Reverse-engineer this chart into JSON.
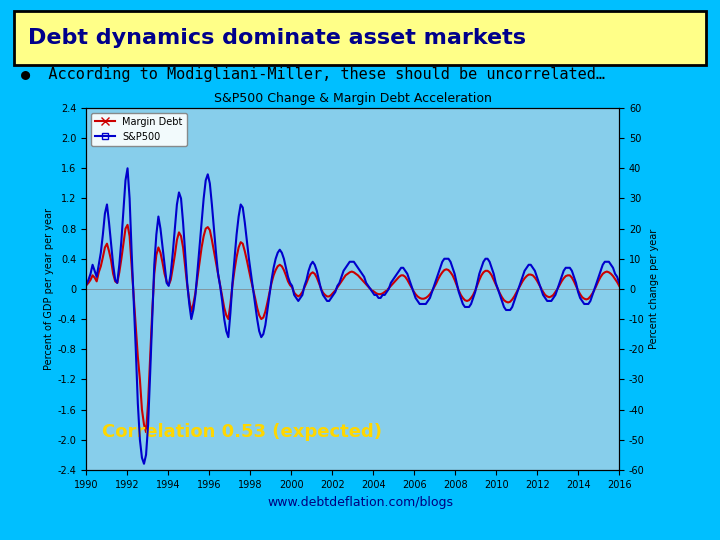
{
  "background_color": "#00BFFF",
  "title_text": "Debt dynamics dominate asset markets",
  "title_bg": "#FFFF88",
  "title_border": "#000000",
  "title_color": "#00008B",
  "subtitle_text": "●  According to Modigliani-Miller, these should be uncorrelated…",
  "subtitle_color": "#000000",
  "chart_title": "S&P500 Change & Margin Debt Acceleration",
  "chart_bg": "#87CEEB",
  "left_ylabel": "Percent of GDP per year per year",
  "right_ylabel": "Percent change per year",
  "ylim_left": [
    -2.4,
    2.4
  ],
  "ylim_right": [
    -60,
    60
  ],
  "xlim": [
    1990,
    2016
  ],
  "xticks": [
    1990,
    1992,
    1994,
    1996,
    1998,
    2000,
    2002,
    2004,
    2006,
    2008,
    2010,
    2012,
    2014,
    2016
  ],
  "yticks_left": [
    -2.4,
    -2.0,
    -1.6,
    -1.2,
    -0.8,
    -0.4,
    0,
    0.4,
    0.8,
    1.2,
    1.6,
    2.0,
    2.4
  ],
  "yticks_right": [
    -60,
    -50,
    -40,
    -30,
    -20,
    -10,
    0,
    10,
    20,
    30,
    40,
    50,
    60
  ],
  "margin_debt_color": "#CC0000",
  "sp500_color": "#0000CC",
  "correlation_text": "Correlation 0.53 (expected)",
  "correlation_color": "#FFD700",
  "watermark": "www.debtdeflation.com/blogs",
  "legend_entries": [
    "Margin Debt",
    "S&P500"
  ],
  "margin_debt_data": [
    0.05,
    0.08,
    0.12,
    0.18,
    0.15,
    0.1,
    0.22,
    0.3,
    0.42,
    0.55,
    0.6,
    0.5,
    0.38,
    0.2,
    0.1,
    0.08,
    0.22,
    0.4,
    0.6,
    0.8,
    0.85,
    0.7,
    0.3,
    -0.1,
    -0.5,
    -0.9,
    -1.2,
    -1.6,
    -1.8,
    -1.9,
    -1.5,
    -0.9,
    -0.3,
    0.2,
    0.45,
    0.55,
    0.48,
    0.35,
    0.2,
    0.1,
    0.05,
    0.12,
    0.28,
    0.45,
    0.65,
    0.75,
    0.7,
    0.55,
    0.3,
    0.05,
    -0.15,
    -0.3,
    -0.2,
    -0.05,
    0.15,
    0.35,
    0.55,
    0.7,
    0.8,
    0.82,
    0.78,
    0.65,
    0.5,
    0.35,
    0.2,
    0.05,
    -0.1,
    -0.25,
    -0.35,
    -0.4,
    -0.2,
    0.05,
    0.25,
    0.42,
    0.55,
    0.62,
    0.6,
    0.5,
    0.38,
    0.25,
    0.12,
    0.0,
    -0.12,
    -0.25,
    -0.35,
    -0.4,
    -0.38,
    -0.3,
    -0.18,
    -0.05,
    0.08,
    0.18,
    0.25,
    0.3,
    0.32,
    0.3,
    0.25,
    0.18,
    0.1,
    0.05,
    0.02,
    -0.05,
    -0.08,
    -0.1,
    -0.08,
    -0.04,
    0.02,
    0.08,
    0.15,
    0.2,
    0.22,
    0.2,
    0.15,
    0.08,
    0.01,
    -0.05,
    -0.08,
    -0.1,
    -0.1,
    -0.08,
    -0.05,
    -0.02,
    0.02,
    0.06,
    0.1,
    0.14,
    0.18,
    0.2,
    0.22,
    0.23,
    0.22,
    0.2,
    0.18,
    0.15,
    0.12,
    0.09,
    0.06,
    0.03,
    0.0,
    -0.02,
    -0.04,
    -0.06,
    -0.07,
    -0.07,
    -0.06,
    -0.04,
    -0.02,
    0.01,
    0.04,
    0.07,
    0.1,
    0.13,
    0.16,
    0.18,
    0.18,
    0.16,
    0.12,
    0.07,
    0.02,
    -0.03,
    -0.07,
    -0.1,
    -0.12,
    -0.13,
    -0.13,
    -0.12,
    -0.1,
    -0.07,
    -0.03,
    0.02,
    0.07,
    0.13,
    0.18,
    0.22,
    0.25,
    0.26,
    0.25,
    0.22,
    0.18,
    0.12,
    0.05,
    -0.02,
    -0.08,
    -0.12,
    -0.15,
    -0.16,
    -0.15,
    -0.12,
    -0.08,
    -0.02,
    0.05,
    0.12,
    0.18,
    0.22,
    0.24,
    0.24,
    0.22,
    0.18,
    0.12,
    0.06,
    0.0,
    -0.06,
    -0.11,
    -0.15,
    -0.17,
    -0.18,
    -0.17,
    -0.14,
    -0.1,
    -0.05,
    0.0,
    0.05,
    0.1,
    0.14,
    0.17,
    0.19,
    0.19,
    0.18,
    0.15,
    0.11,
    0.06,
    0.01,
    -0.04,
    -0.08,
    -0.1,
    -0.11,
    -0.1,
    -0.08,
    -0.04,
    0.0,
    0.05,
    0.1,
    0.14,
    0.17,
    0.18,
    0.18,
    0.15,
    0.1,
    0.04,
    -0.02,
    -0.07,
    -0.11,
    -0.13,
    -0.14,
    -0.13,
    -0.1,
    -0.06,
    -0.01,
    0.05,
    0.11,
    0.16,
    0.2,
    0.22,
    0.23,
    0.22,
    0.2,
    0.17,
    0.13,
    0.09,
    0.04
  ],
  "sp500_data": [
    1.5,
    3.0,
    5.0,
    8.0,
    6.0,
    4.0,
    8.0,
    12.0,
    18.0,
    25.0,
    28.0,
    22.0,
    15.0,
    8.0,
    3.0,
    2.0,
    8.0,
    16.0,
    26.0,
    36.0,
    40.0,
    30.0,
    12.0,
    -4.0,
    -20.0,
    -38.0,
    -50.0,
    -56.0,
    -58.0,
    -55.0,
    -45.0,
    -28.0,
    -10.0,
    8.0,
    18.0,
    24.0,
    20.0,
    14.0,
    8.0,
    2.0,
    1.0,
    5.0,
    12.0,
    20.0,
    28.0,
    32.0,
    30.0,
    22.0,
    12.0,
    2.0,
    -5.0,
    -10.0,
    -7.0,
    -2.0,
    6.0,
    14.0,
    22.0,
    30.0,
    36.0,
    38.0,
    35.0,
    28.0,
    20.0,
    12.0,
    5.0,
    1.0,
    -4.0,
    -10.0,
    -14.0,
    -16.0,
    -8.0,
    2.0,
    10.0,
    18.0,
    24.0,
    28.0,
    27.0,
    22.0,
    16.0,
    10.0,
    5.0,
    0.0,
    -5.0,
    -10.0,
    -14.0,
    -16.0,
    -15.0,
    -12.0,
    -7.0,
    -2.0,
    3.0,
    7.0,
    10.0,
    12.0,
    13.0,
    12.0,
    10.0,
    7.0,
    4.0,
    2.0,
    1.0,
    -2.0,
    -3.0,
    -4.0,
    -3.0,
    -2.0,
    1.0,
    3.0,
    6.0,
    8.0,
    9.0,
    8.0,
    6.0,
    3.0,
    0.0,
    -2.0,
    -3.0,
    -4.0,
    -4.0,
    -3.0,
    -2.0,
    -1.0,
    1.0,
    2.0,
    4.0,
    6.0,
    7.0,
    8.0,
    9.0,
    9.0,
    9.0,
    8.0,
    7.0,
    6.0,
    5.0,
    4.0,
    2.0,
    1.0,
    0.0,
    -1.0,
    -2.0,
    -2.0,
    -3.0,
    -3.0,
    -2.0,
    -2.0,
    -1.0,
    0.0,
    2.0,
    3.0,
    4.0,
    5.0,
    6.0,
    7.0,
    7.0,
    6.0,
    5.0,
    3.0,
    1.0,
    -1.0,
    -3.0,
    -4.0,
    -5.0,
    -5.0,
    -5.0,
    -5.0,
    -4.0,
    -3.0,
    -1.0,
    1.0,
    3.0,
    5.0,
    7.0,
    9.0,
    10.0,
    10.0,
    10.0,
    9.0,
    7.0,
    5.0,
    2.0,
    -1.0,
    -3.0,
    -5.0,
    -6.0,
    -6.0,
    -6.0,
    -5.0,
    -3.0,
    -1.0,
    2.0,
    5.0,
    7.0,
    9.0,
    10.0,
    10.0,
    9.0,
    7.0,
    5.0,
    2.0,
    0.0,
    -2.0,
    -4.0,
    -6.0,
    -7.0,
    -7.0,
    -7.0,
    -6.0,
    -4.0,
    -2.0,
    0.0,
    2.0,
    4.0,
    6.0,
    7.0,
    8.0,
    8.0,
    7.0,
    6.0,
    4.0,
    2.0,
    0.0,
    -2.0,
    -3.0,
    -4.0,
    -4.0,
    -4.0,
    -3.0,
    -2.0,
    0.0,
    2.0,
    4.0,
    6.0,
    7.0,
    7.0,
    7.0,
    6.0,
    4.0,
    2.0,
    -1.0,
    -3.0,
    -4.0,
    -5.0,
    -5.0,
    -5.0,
    -4.0,
    -2.0,
    0.0,
    2.0,
    4.0,
    6.0,
    8.0,
    9.0,
    9.0,
    9.0,
    8.0,
    7.0,
    5.0,
    4.0,
    2.0
  ]
}
